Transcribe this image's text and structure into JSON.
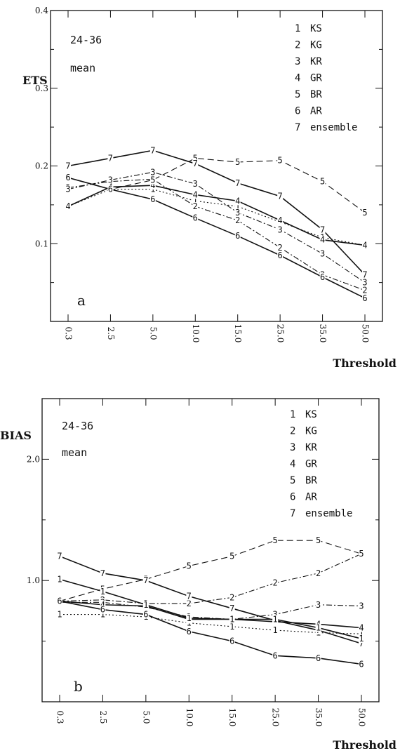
{
  "chart_data": [
    {
      "type": "line",
      "panel_letter": "a",
      "ylabel": "ETS",
      "xlabel": "Threshold",
      "annotation_period": "24-36",
      "annotation_stat": "mean",
      "categories": [
        "0.3",
        "2.5",
        "5.0",
        "10.0",
        "15.0",
        "25.0",
        "35.0",
        "50.0"
      ],
      "ylim": [
        0.0,
        0.4
      ],
      "ytick_values": [
        0.1,
        0.2,
        0.3,
        0.4
      ],
      "ytick_labels": [
        "0.1",
        "0.2",
        "0.3",
        "0.4"
      ],
      "grid": false,
      "legend_position": "top-right",
      "series": [
        {
          "marker": "1",
          "name": "KS",
          "style": "dotted",
          "values": [
            0.148,
            0.17,
            0.17,
            0.155,
            0.148,
            0.128,
            0.108,
            0.098
          ]
        },
        {
          "marker": "2",
          "name": "KG",
          "style": "dashdot",
          "values": [
            0.172,
            0.18,
            0.183,
            0.148,
            0.13,
            0.095,
            0.06,
            0.04
          ]
        },
        {
          "marker": "3",
          "name": "KR",
          "style": "dashdot",
          "values": [
            0.17,
            0.182,
            0.192,
            0.177,
            0.14,
            0.118,
            0.087,
            0.05
          ]
        },
        {
          "marker": "4",
          "name": "GR",
          "style": "solid",
          "values": [
            0.148,
            0.173,
            0.175,
            0.163,
            0.155,
            0.13,
            0.105,
            0.098
          ]
        },
        {
          "marker": "5",
          "name": "BR",
          "style": "dashed",
          "values": [
            0.185,
            0.17,
            0.182,
            0.21,
            0.205,
            0.207,
            0.18,
            0.14
          ]
        },
        {
          "marker": "6",
          "name": "AR",
          "style": "solid",
          "values": [
            0.185,
            0.17,
            0.157,
            0.133,
            0.11,
            0.085,
            0.057,
            0.03
          ]
        },
        {
          "marker": "7",
          "name": "ensemble",
          "style": "solid",
          "values": [
            0.2,
            0.21,
            0.22,
            0.203,
            0.178,
            0.161,
            0.118,
            0.06
          ]
        }
      ]
    },
    {
      "type": "line",
      "panel_letter": "b",
      "ylabel": "BIAS",
      "xlabel": "Threshold",
      "annotation_period": "24-36",
      "annotation_stat": "mean",
      "categories": [
        "0.3",
        "2.5",
        "5.0",
        "10.0",
        "15.0",
        "25.0",
        "35.0",
        "50.0"
      ],
      "ylim": [
        0.0,
        2.5
      ],
      "ytick_values": [
        1.0,
        2.0
      ],
      "ytick_labels": [
        "1.0",
        "2.0"
      ],
      "grid": false,
      "legend_position": "top-right",
      "series": [
        {
          "marker": "1",
          "name": "KS",
          "style": "dotted",
          "values": [
            0.72,
            0.72,
            0.7,
            0.65,
            0.62,
            0.59,
            0.57,
            0.56
          ]
        },
        {
          "marker": "2",
          "name": "KG",
          "style": "dashdot",
          "values": [
            0.83,
            0.84,
            0.81,
            0.81,
            0.86,
            0.98,
            1.06,
            1.22
          ]
        },
        {
          "marker": "3",
          "name": "KR",
          "style": "dashdot",
          "values": [
            0.82,
            0.82,
            0.78,
            0.7,
            0.68,
            0.72,
            0.8,
            0.79
          ]
        },
        {
          "marker": "4",
          "name": "GR",
          "style": "solid",
          "values": [
            0.83,
            0.8,
            0.79,
            0.68,
            0.68,
            0.66,
            0.64,
            0.61
          ]
        },
        {
          "marker": "5",
          "name": "BR",
          "style": "dashed",
          "values": [
            0.83,
            0.93,
            1.01,
            1.12,
            1.2,
            1.33,
            1.33,
            1.22
          ]
        },
        {
          "marker": "6",
          "name": "AR",
          "style": "solid",
          "values": [
            0.83,
            0.76,
            0.72,
            0.58,
            0.5,
            0.38,
            0.36,
            0.31
          ]
        },
        {
          "marker": "7",
          "name": "ensemble",
          "style": "solid",
          "values": [
            1.2,
            1.06,
            1.0,
            0.87,
            0.77,
            0.67,
            0.59,
            0.48
          ]
        },
        {
          "marker": "1",
          "name": "",
          "style": "solid",
          "values": [
            1.01,
            0.91,
            0.8,
            0.69,
            0.68,
            0.68,
            0.61,
            0.52
          ]
        }
      ]
    }
  ]
}
